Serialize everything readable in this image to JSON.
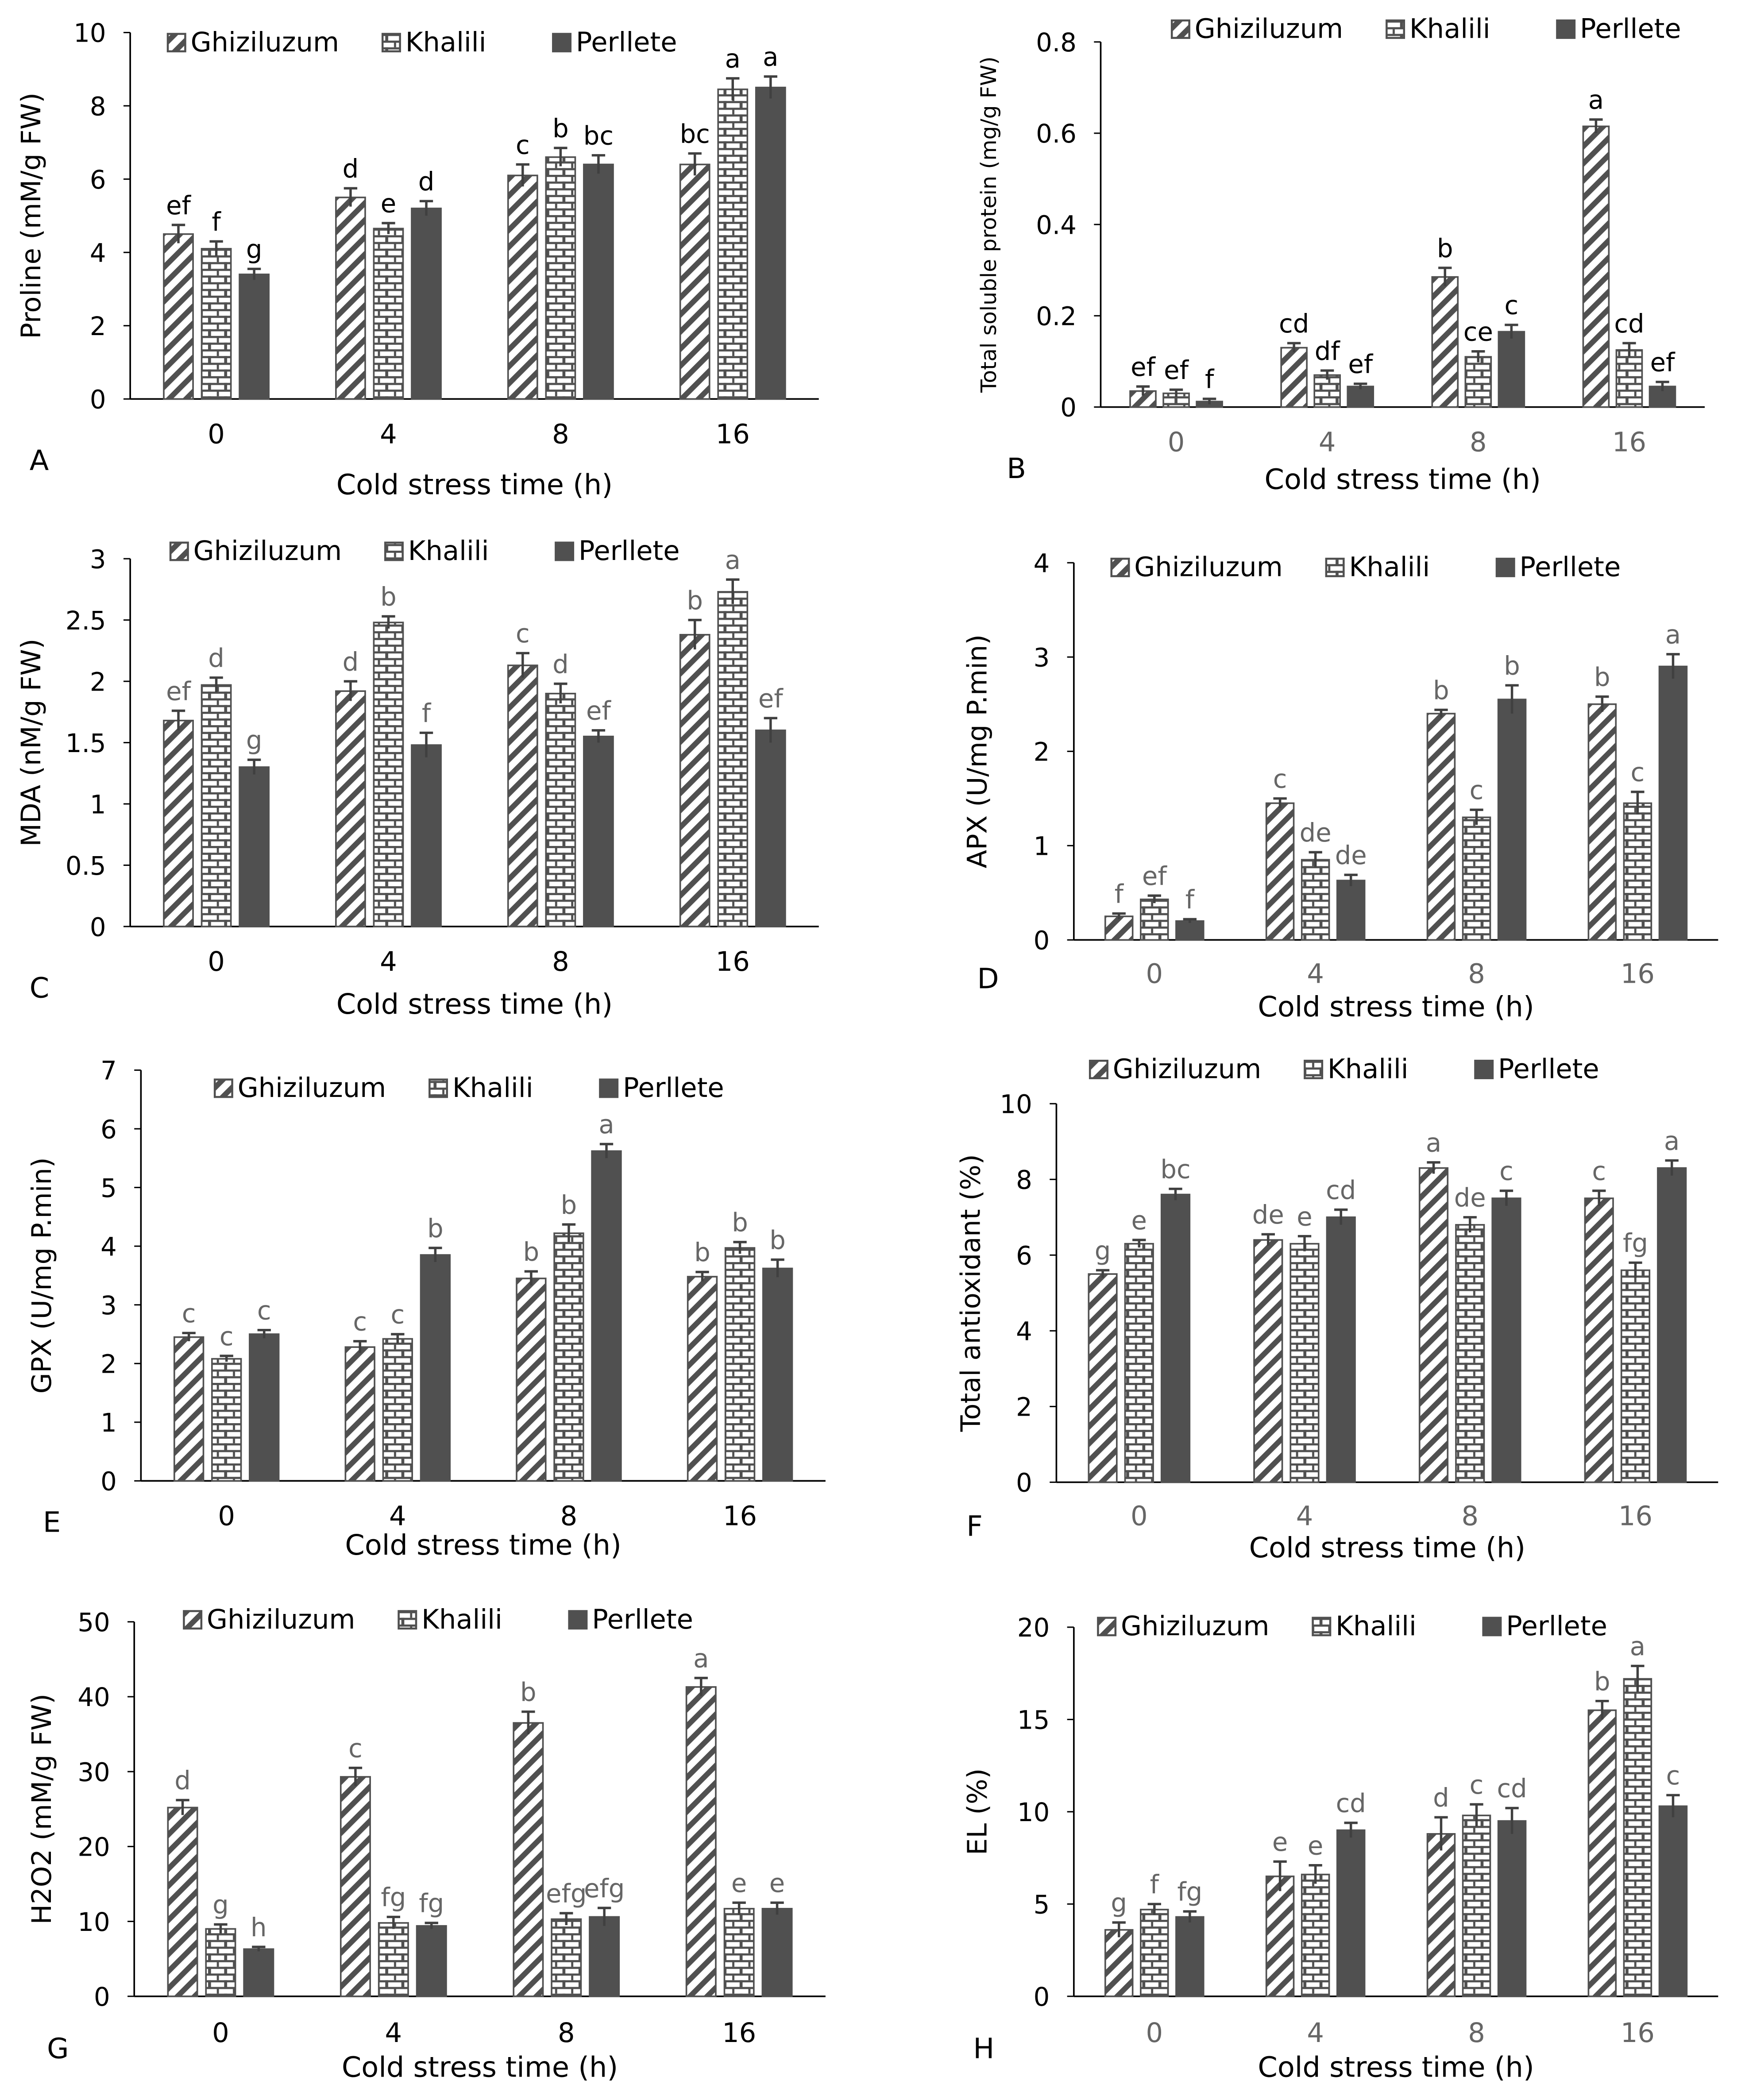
{
  "colors": {
    "axis": "#000000",
    "bar_edge": "#505050",
    "perllete": "#505050",
    "error": "#404040"
  },
  "chart_data": [
    {
      "type": "bar",
      "panel": "A",
      "ylabel": "Proline (mM/g FW)",
      "xlabel": "Cold stress time (h)",
      "categories": [
        "0",
        "4",
        "8",
        "16"
      ],
      "ylim": [
        0,
        10
      ],
      "yticks": [
        0,
        2,
        4,
        6,
        8,
        10
      ],
      "legend": "top",
      "letter_color": "#000000",
      "series": [
        {
          "name": "Ghiziluzum",
          "values": [
            4.5,
            5.5,
            6.1,
            6.4
          ],
          "errors": [
            0.25,
            0.25,
            0.3,
            0.3
          ],
          "letters": [
            "ef",
            "d",
            "c",
            "bc"
          ]
        },
        {
          "name": "Khalili",
          "values": [
            4.1,
            4.65,
            6.6,
            8.45
          ],
          "errors": [
            0.2,
            0.15,
            0.25,
            0.3
          ],
          "letters": [
            "f",
            "e",
            "b",
            "a"
          ]
        },
        {
          "name": "Perllete",
          "values": [
            3.4,
            5.2,
            6.4,
            8.5
          ],
          "errors": [
            0.15,
            0.2,
            0.25,
            0.3
          ],
          "letters": [
            "g",
            "d",
            "bc",
            "a"
          ]
        }
      ]
    },
    {
      "type": "bar",
      "panel": "B",
      "ylabel": "Total soluble protein (mg/g FW)",
      "xlabel": "Cold stress time (h)",
      "categories": [
        "0",
        "4",
        "8",
        "16"
      ],
      "ylim": [
        0,
        0.8
      ],
      "yticks": [
        "0",
        "0.2",
        "0.4",
        "0.6",
        "0.8"
      ],
      "legend": "top",
      "letter_color": "#000000",
      "series": [
        {
          "name": "Ghiziluzum",
          "values": [
            0.035,
            0.13,
            0.285,
            0.615
          ],
          "errors": [
            0.01,
            0.01,
            0.02,
            0.015
          ],
          "letters": [
            "ef",
            "cd",
            "b",
            "a"
          ]
        },
        {
          "name": "Khalili",
          "values": [
            0.03,
            0.07,
            0.11,
            0.125
          ],
          "errors": [
            0.008,
            0.01,
            0.012,
            0.015
          ],
          "letters": [
            "ef",
            "df",
            "ce",
            "cd"
          ]
        },
        {
          "name": "Perllete",
          "values": [
            0.012,
            0.045,
            0.165,
            0.045
          ],
          "errors": [
            0.006,
            0.006,
            0.015,
            0.01
          ],
          "letters": [
            "f",
            "ef",
            "c",
            "ef"
          ]
        }
      ]
    },
    {
      "type": "bar",
      "panel": "C",
      "ylabel": "MDA (nM/g FW)",
      "xlabel": "Cold stress time (h)",
      "categories": [
        "0",
        "4",
        "8",
        "16"
      ],
      "ylim": [
        0,
        3
      ],
      "yticks": [
        "0",
        "0.5",
        "1",
        "1.5",
        "2",
        "2.5",
        "3"
      ],
      "legend": "top",
      "letter_color": "#666666",
      "series": [
        {
          "name": "Ghiziluzum",
          "values": [
            1.68,
            1.92,
            2.13,
            2.38
          ],
          "errors": [
            0.08,
            0.08,
            0.1,
            0.12
          ],
          "letters": [
            "ef",
            "d",
            "c",
            "b"
          ]
        },
        {
          "name": "Khalili",
          "values": [
            1.97,
            2.48,
            1.9,
            2.73
          ],
          "errors": [
            0.06,
            0.05,
            0.08,
            0.1
          ],
          "letters": [
            "d",
            "b",
            "d",
            "a"
          ]
        },
        {
          "name": "Perllete",
          "values": [
            1.3,
            1.48,
            1.55,
            1.6
          ],
          "errors": [
            0.06,
            0.1,
            0.05,
            0.1
          ],
          "letters": [
            "g",
            "f",
            "ef",
            "ef"
          ]
        }
      ]
    },
    {
      "type": "bar",
      "panel": "D",
      "ylabel": "APX (U/mg P.min)",
      "xlabel": "Cold stress time (h)",
      "categories": [
        "0",
        "4",
        "8",
        "16"
      ],
      "ylim": [
        0,
        4
      ],
      "yticks": [
        0,
        1,
        2,
        3,
        4
      ],
      "legend": "top",
      "letter_color": "#666666",
      "series": [
        {
          "name": "Ghiziluzum",
          "values": [
            0.25,
            1.45,
            2.4,
            2.5
          ],
          "errors": [
            0.03,
            0.05,
            0.04,
            0.08
          ],
          "letters": [
            "f",
            "c",
            "b",
            "b"
          ]
        },
        {
          "name": "Khalili",
          "values": [
            0.43,
            0.85,
            1.3,
            1.45
          ],
          "errors": [
            0.04,
            0.08,
            0.08,
            0.12
          ],
          "letters": [
            "ef",
            "de",
            "c",
            "c"
          ]
        },
        {
          "name": "Perllete",
          "values": [
            0.2,
            0.63,
            2.55,
            2.9
          ],
          "errors": [
            0.02,
            0.06,
            0.15,
            0.13
          ],
          "letters": [
            "f",
            "de",
            "b",
            "a"
          ]
        }
      ]
    },
    {
      "type": "bar",
      "panel": "E",
      "ylabel": "GPX (U/mg P.min)",
      "xlabel": "Cold stress time (h)",
      "categories": [
        "0",
        "4",
        "8",
        "16"
      ],
      "ylim": [
        0,
        7
      ],
      "yticks": [
        0,
        1,
        2,
        3,
        4,
        5,
        6,
        7
      ],
      "legend": "top",
      "letter_color": "#666666",
      "series": [
        {
          "name": "Ghiziluzum",
          "values": [
            2.45,
            2.28,
            3.45,
            3.48
          ],
          "errors": [
            0.07,
            0.1,
            0.12,
            0.08
          ],
          "letters": [
            "c",
            "c",
            "b",
            "b"
          ]
        },
        {
          "name": "Khalili",
          "values": [
            2.08,
            2.42,
            4.22,
            3.97
          ],
          "errors": [
            0.05,
            0.08,
            0.15,
            0.1
          ],
          "letters": [
            "c",
            "c",
            "b",
            "b"
          ]
        },
        {
          "name": "Perllete",
          "values": [
            2.5,
            3.85,
            5.62,
            3.62
          ],
          "errors": [
            0.07,
            0.12,
            0.12,
            0.15
          ],
          "letters": [
            "c",
            "b",
            "a",
            "b"
          ]
        }
      ]
    },
    {
      "type": "bar",
      "panel": "F",
      "ylabel": "Total antioxidant (%)",
      "xlabel": "Cold stress time (h)",
      "categories": [
        "0",
        "4",
        "8",
        "16"
      ],
      "ylim": [
        0,
        10
      ],
      "yticks": [
        0,
        2,
        4,
        6,
        8,
        10
      ],
      "legend": "top",
      "letter_color": "#666666",
      "series": [
        {
          "name": "Ghiziluzum",
          "values": [
            5.5,
            6.4,
            8.3,
            7.5
          ],
          "errors": [
            0.1,
            0.15,
            0.15,
            0.2
          ],
          "letters": [
            "g",
            "de",
            "a",
            "c"
          ]
        },
        {
          "name": "Khalili",
          "values": [
            6.3,
            6.3,
            6.8,
            5.6
          ],
          "errors": [
            0.1,
            0.2,
            0.2,
            0.2
          ],
          "letters": [
            "e",
            "e",
            "de",
            "fg"
          ]
        },
        {
          "name": "Perllete",
          "values": [
            7.6,
            7.0,
            7.5,
            8.3
          ],
          "errors": [
            0.15,
            0.2,
            0.2,
            0.2
          ],
          "letters": [
            "bc",
            "cd",
            "c",
            "a"
          ]
        }
      ]
    },
    {
      "type": "bar",
      "panel": "G",
      "ylabel": "H2O2 (mM/g FW)",
      "xlabel": "Cold stress time (h)",
      "categories": [
        "0",
        "4",
        "8",
        "16"
      ],
      "ylim": [
        0,
        50
      ],
      "yticks": [
        0,
        10,
        20,
        30,
        40,
        50
      ],
      "legend": "top",
      "letter_color": "#666666",
      "series": [
        {
          "name": "Ghiziluzum",
          "values": [
            25.2,
            29.3,
            36.5,
            41.3
          ],
          "errors": [
            1.0,
            1.2,
            1.5,
            1.2
          ],
          "letters": [
            "d",
            "c",
            "b",
            "a"
          ]
        },
        {
          "name": "Khalili",
          "values": [
            9.0,
            9.8,
            10.3,
            11.7
          ],
          "errors": [
            0.6,
            0.8,
            0.8,
            0.8
          ],
          "letters": [
            "g",
            "fg",
            "efg",
            "e"
          ]
        },
        {
          "name": "Perllete",
          "values": [
            6.3,
            9.4,
            10.6,
            11.7
          ],
          "errors": [
            0.3,
            0.4,
            1.2,
            0.8
          ],
          "letters": [
            "h",
            "fg",
            "efg",
            "e"
          ]
        }
      ]
    },
    {
      "type": "bar",
      "panel": "H",
      "ylabel": "EL (%)",
      "xlabel": "Cold stress time (h)",
      "categories": [
        "0",
        "4",
        "8",
        "16"
      ],
      "ylim": [
        0,
        20
      ],
      "yticks": [
        0,
        5,
        10,
        15,
        20
      ],
      "legend": "top",
      "letter_color": "#666666",
      "series": [
        {
          "name": "Ghiziluzum",
          "values": [
            3.6,
            6.5,
            8.8,
            15.5
          ],
          "errors": [
            0.4,
            0.8,
            0.9,
            0.5
          ],
          "letters": [
            "g",
            "e",
            "d",
            "b"
          ]
        },
        {
          "name": "Khalili",
          "values": [
            4.7,
            6.6,
            9.8,
            17.2
          ],
          "errors": [
            0.3,
            0.5,
            0.6,
            0.7
          ],
          "letters": [
            "f",
            "e",
            "c",
            "a"
          ]
        },
        {
          "name": "Perllete",
          "values": [
            4.3,
            9.0,
            9.5,
            10.3
          ],
          "errors": [
            0.3,
            0.4,
            0.7,
            0.6
          ],
          "letters": [
            "fg",
            "cd",
            "cd",
            "c"
          ]
        }
      ]
    }
  ]
}
